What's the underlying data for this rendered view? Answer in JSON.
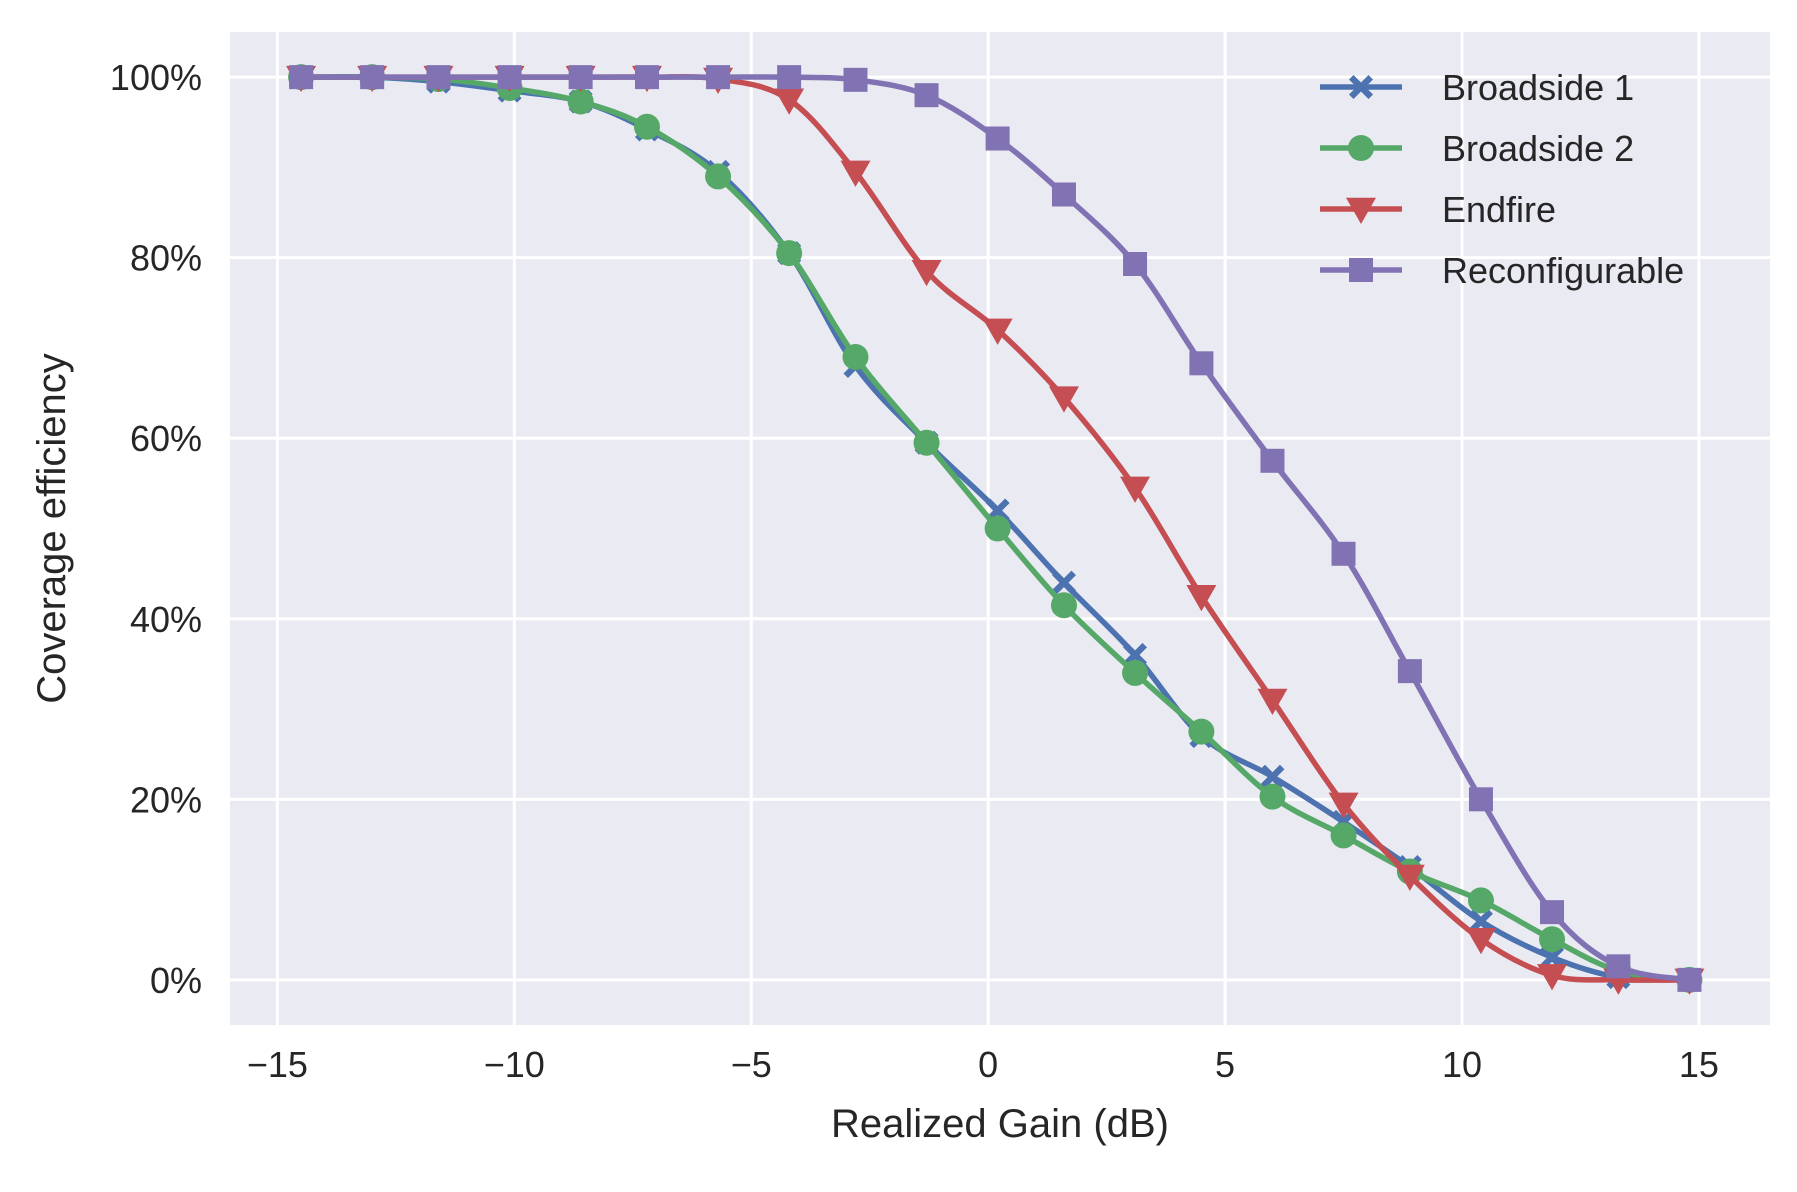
{
  "chart_data": {
    "type": "line",
    "title": "",
    "xlabel": "Realized Gain (dB)",
    "ylabel": "Coverage efficiency",
    "xlim": [
      -16,
      16.5
    ],
    "ylim": [
      -5,
      105
    ],
    "x_ticks": [
      -15,
      -10,
      -5,
      0,
      5,
      10,
      15
    ],
    "x_tick_labels": [
      "−15",
      "−10",
      "−5",
      "0",
      "5",
      "10",
      "15"
    ],
    "y_ticks": [
      0,
      20,
      40,
      60,
      80,
      100
    ],
    "y_tick_labels": [
      "0%",
      "20%",
      "40%",
      "60%",
      "80%",
      "100%"
    ],
    "grid": true,
    "legend_position": "top-right",
    "background_color": "#eaeaf2",
    "grid_color": "#ffffff",
    "series": [
      {
        "name": "Broadside 1",
        "color": "#4c72b0",
        "marker": "x",
        "x": [
          -14.5,
          -13.0,
          -11.6,
          -10.1,
          -8.6,
          -7.2,
          -5.7,
          -4.2,
          -2.8,
          -1.3,
          0.2,
          1.6,
          3.1,
          4.5,
          6.0,
          7.5,
          8.9,
          10.4,
          11.9,
          13.3,
          14.8
        ],
        "y": [
          100,
          100,
          99.5,
          98.5,
          97.3,
          94.2,
          89.5,
          80.5,
          68.0,
          59.5,
          52.0,
          44.0,
          36.0,
          27.0,
          22.5,
          17.5,
          12.5,
          6.5,
          2.5,
          0.3,
          0
        ]
      },
      {
        "name": "Broadside 2",
        "color": "#55a868",
        "marker": "o",
        "x": [
          -14.5,
          -13.0,
          -11.6,
          -10.1,
          -8.6,
          -7.2,
          -5.7,
          -4.2,
          -2.8,
          -1.3,
          0.2,
          1.6,
          3.1,
          4.5,
          6.0,
          7.5,
          8.9,
          10.4,
          11.9,
          13.3,
          14.8
        ],
        "y": [
          100,
          100,
          99.8,
          98.8,
          97.3,
          94.5,
          89.0,
          80.5,
          69.0,
          59.5,
          50.0,
          41.5,
          34.0,
          27.5,
          20.3,
          16.0,
          12.0,
          8.8,
          4.5,
          1.0,
          0
        ]
      },
      {
        "name": "Endfire",
        "color": "#c44e52",
        "marker": "v",
        "x": [
          -14.5,
          -13.0,
          -11.6,
          -10.1,
          -8.6,
          -7.2,
          -5.7,
          -4.2,
          -2.8,
          -1.3,
          0.2,
          1.6,
          3.1,
          4.5,
          6.0,
          7.5,
          8.9,
          10.4,
          11.9,
          13.3,
          14.8
        ],
        "y": [
          100,
          100,
          100,
          100,
          100,
          100,
          99.8,
          97.5,
          89.5,
          78.5,
          72.0,
          64.5,
          54.5,
          42.5,
          31.0,
          19.5,
          11.5,
          4.5,
          0.5,
          0,
          0
        ]
      },
      {
        "name": "Reconfigurable",
        "color": "#8172b3",
        "marker": "s",
        "x": [
          -14.5,
          -13.0,
          -11.6,
          -10.1,
          -8.6,
          -7.2,
          -5.7,
          -4.2,
          -2.8,
          -1.3,
          0.2,
          1.6,
          3.1,
          4.5,
          6.0,
          7.5,
          8.9,
          10.4,
          11.9,
          13.3,
          14.8
        ],
        "y": [
          100,
          100,
          100,
          100,
          100,
          100,
          100,
          100,
          99.7,
          98.0,
          93.2,
          87.0,
          79.3,
          68.3,
          57.5,
          47.2,
          34.2,
          20.0,
          7.5,
          1.5,
          0
        ]
      }
    ]
  }
}
